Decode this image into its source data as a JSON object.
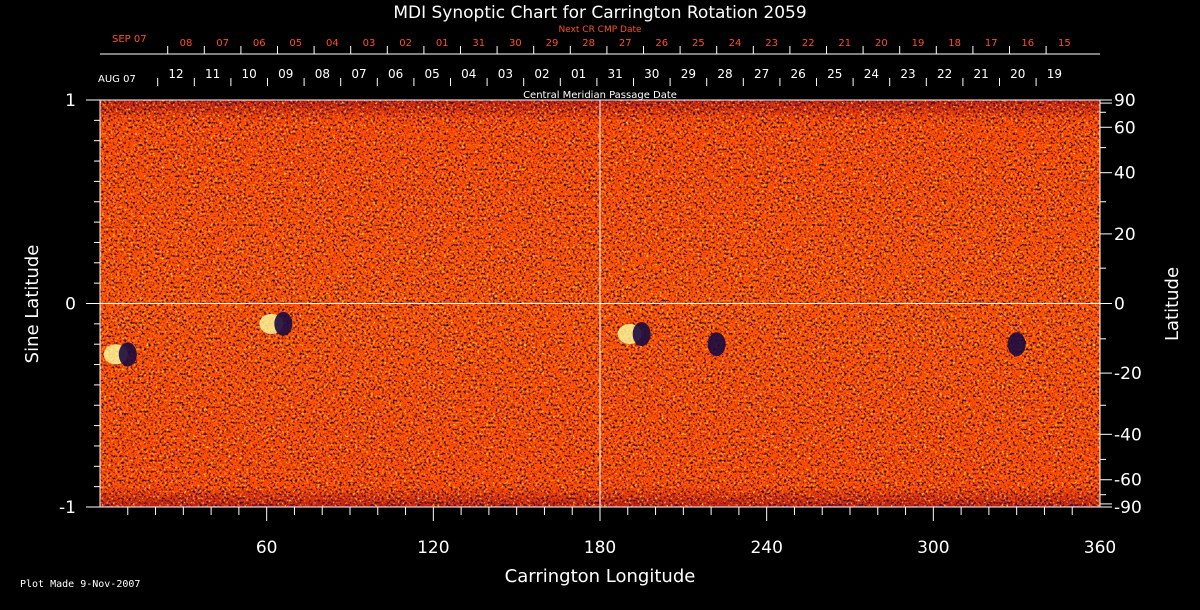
{
  "chart_data": {
    "type": "heatmap",
    "title": "MDI Synoptic Chart for Carrington Rotation 2059",
    "xlabel": "Carrington Longitude",
    "ylabel_left": "Sine Latitude",
    "ylabel_right": "Latitude",
    "xlim": [
      0,
      360
    ],
    "ylim": [
      -1,
      1
    ],
    "x_ticks": [
      60,
      120,
      180,
      240,
      300,
      360
    ],
    "y_ticks_left": [
      -1,
      0,
      1
    ],
    "y_ticks_right": [
      90,
      60,
      40,
      20,
      0,
      -20,
      -40,
      -60,
      -90
    ],
    "grid": {
      "vertical_line_at": 180,
      "horizontal_line_at": 0
    },
    "top_axis_label": "Central Meridian Passage Date",
    "top_axis_start_label": "AUG 07",
    "top_axis_dates": [
      "12",
      "11",
      "10",
      "09",
      "08",
      "07",
      "06",
      "05",
      "04",
      "03",
      "02",
      "01",
      "31",
      "30",
      "29",
      "28",
      "27",
      "26",
      "25",
      "24",
      "23",
      "22",
      "21",
      "20",
      "19"
    ],
    "next_axis_label": "Next CR CMP Date",
    "next_axis_start_label": "SEP 07",
    "next_axis_dates": [
      "08",
      "07",
      "06",
      "05",
      "04",
      "03",
      "02",
      "01",
      "31",
      "30",
      "29",
      "28",
      "27",
      "26",
      "25",
      "24",
      "23",
      "22",
      "21",
      "20",
      "19",
      "18",
      "17",
      "16",
      "15"
    ],
    "colors": {
      "background": "#ff4500",
      "positive": "#ffffa0",
      "negative": "#1a0a40",
      "axes": "#ffffff",
      "next_axis": "#ff5020"
    },
    "features": [
      {
        "longitude": 66,
        "sine_latitude": -0.1,
        "polarity": "bipolar"
      },
      {
        "longitude": 195,
        "sine_latitude": -0.15,
        "polarity": "bipolar"
      },
      {
        "longitude": 222,
        "sine_latitude": -0.2,
        "polarity": "negative"
      },
      {
        "longitude": 330,
        "sine_latitude": -0.2,
        "polarity": "negative"
      },
      {
        "longitude": 10,
        "sine_latitude": -0.25,
        "polarity": "bipolar"
      }
    ]
  },
  "footer": "Plot Made  9-Nov-2007"
}
